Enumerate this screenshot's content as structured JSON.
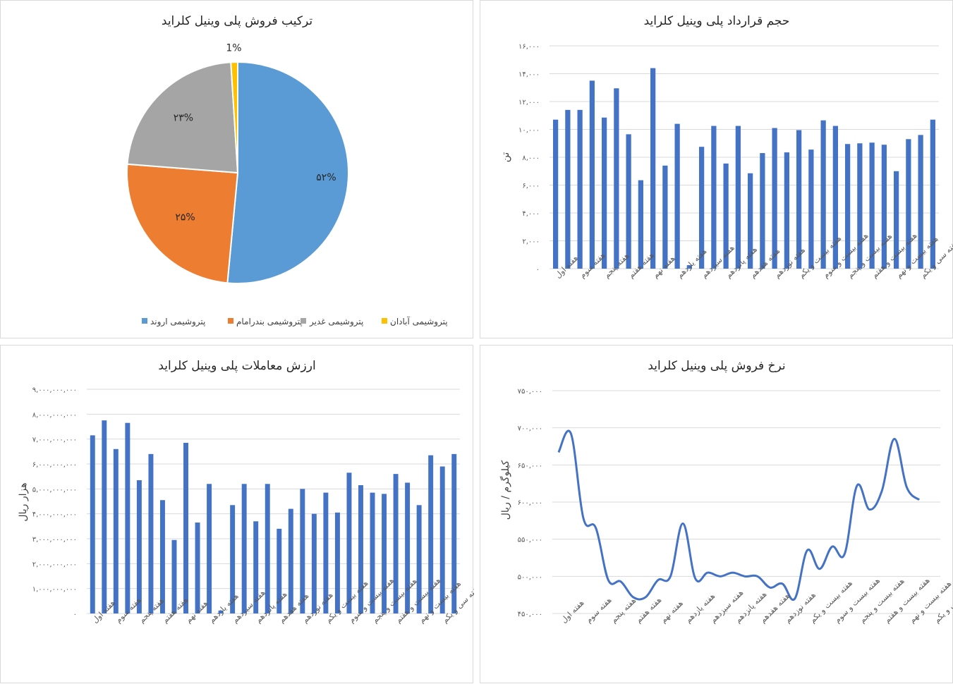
{
  "charts": {
    "pie": {
      "title": "ترکیب فروش پلی وینیل کلراید",
      "legend": [
        {
          "label": "پتروشیمی اروند",
          "color": "#5b9bd5"
        },
        {
          "label": "پتروشیمی بندرامام",
          "color": "#ed7d31"
        },
        {
          "label": "پتروشیمی غدیر",
          "color": "#a5a5a5"
        },
        {
          "label": "پتروشیمی آبادان",
          "color": "#ffc000"
        }
      ]
    },
    "volume": {
      "title": "حجم قرارداد پلی وینیل کلراید",
      "ylabel": "تن"
    },
    "value": {
      "title": "ارزش معاملات پلی وینیل کلراید",
      "ylabel": "هزار ریال"
    },
    "price": {
      "title": "نرخ فروش پلی وینیل کلراید",
      "ylabel": "کیلوگرم / ریال"
    }
  },
  "chart_data": [
    {
      "type": "pie",
      "title": "ترکیب فروش پلی وینیل کلراید",
      "categories": [
        "پتروشیمی اروند",
        "پتروشیمی بندرامام",
        "پتروشیمی غدیر",
        "پتروشیمی آبادان"
      ],
      "values": [
        52,
        25,
        23,
        1
      ],
      "value_labels": [
        "۵۲%",
        "۲۵%",
        "۲۳%",
        "1%"
      ],
      "colors": [
        "#5b9bd5",
        "#ed7d31",
        "#a5a5a5",
        "#ffc000"
      ],
      "legend": "bottom"
    },
    {
      "type": "bar",
      "title": "حجم قرارداد پلی وینیل کلراید",
      "ylabel": "تن",
      "ylim": [
        0,
        16000
      ],
      "yticks": [
        "۰",
        "۲,۰۰۰",
        "۴,۰۰۰",
        "۶,۰۰۰",
        "۸,۰۰۰",
        "۱۰,۰۰۰",
        "۱۲,۰۰۰",
        "۱۴,۰۰۰",
        "۱۶,۰۰۰"
      ],
      "x_tick_labels": [
        "هفته اول",
        "هفته سوم",
        "هفته پنجم",
        "هفته هفتم",
        "هفته نهم",
        "هفته یازدهم",
        "هفته سیزدهم",
        "هفته پانزدهم",
        "هفته هفدهم",
        "هفته نوزدهم",
        "هفته بیست و یکم",
        "هفته بیست و سوم",
        "هفته بیست و پنجم",
        "هفته بیست و هفتم",
        "هفته بیست و نهم",
        "هفته سی و یکم"
      ],
      "values": [
        10700,
        11400,
        11400,
        13500,
        10850,
        12950,
        9650,
        6350,
        14400,
        7400,
        10400,
        250,
        8750,
        10250,
        7550,
        10250,
        6850,
        8300,
        10100,
        8350,
        9950,
        8550,
        10650,
        10250,
        8950,
        9000,
        9050,
        8900,
        7000,
        9300,
        9600,
        10700
      ],
      "color": "#4472c4",
      "grid": true
    },
    {
      "type": "bar",
      "title": "ارزش معاملات پلی وینیل کلراید",
      "ylabel": "هزار ریال",
      "ylim": [
        0,
        9000000000
      ],
      "yticks": [
        "۰",
        "۱,۰۰۰,۰۰۰,۰۰۰",
        "۲,۰۰۰,۰۰۰,۰۰۰",
        "۳,۰۰۰,۰۰۰,۰۰۰",
        "۴,۰۰۰,۰۰۰,۰۰۰",
        "۵,۰۰۰,۰۰۰,۰۰۰",
        "۶,۰۰۰,۰۰۰,۰۰۰",
        "۷,۰۰۰,۰۰۰,۰۰۰",
        "۸,۰۰۰,۰۰۰,۰۰۰",
        "۹,۰۰۰,۰۰۰,۰۰۰"
      ],
      "x_tick_labels": [
        "هفته اول",
        "هفته سوم",
        "هفته پنجم",
        "هفته هفتم",
        "هفته نهم",
        "هفته یازدهم",
        "هفته سیزدهم",
        "هفته پانزدهم",
        "هفته هفدهم",
        "هفته نوزدهم",
        "هفته بیست و یکم",
        "هفته بیست و سوم",
        "هفته بیست و پنجم",
        "هفته بیست و هفتم",
        "هفته بیست و نهم",
        "هفته سی و یکم"
      ],
      "values": [
        7150000000,
        7750000000,
        6600000000,
        7650000000,
        5350000000,
        6400000000,
        4550000000,
        2950000000,
        6850000000,
        3650000000,
        5200000000,
        120000000,
        4350000000,
        5200000000,
        3700000000,
        5200000000,
        3400000000,
        4200000000,
        5000000000,
        4000000000,
        4850000000,
        4050000000,
        5650000000,
        5150000000,
        4850000000,
        4800000000,
        5600000000,
        5250000000,
        4350000000,
        6350000000,
        5900000000,
        6400000000
      ],
      "color": "#4472c4",
      "grid": true
    },
    {
      "type": "line",
      "title": "نرخ فروش پلی وینیل کلراید",
      "ylabel": "کیلوگرم / ریال",
      "ylim": [
        450000,
        750000
      ],
      "yticks": [
        "۴۵۰,۰۰۰",
        "۵۰۰,۰۰۰",
        "۵۵۰,۰۰۰",
        "۶۰۰,۰۰۰",
        "۶۵۰,۰۰۰",
        "۷۰۰,۰۰۰",
        "۷۵۰,۰۰۰"
      ],
      "x_tick_labels": [
        "هفته اول",
        "هفته سوم",
        "هفته پنجم",
        "هفته هفتم",
        "هفته نهم",
        "هفته یازدهم",
        "هفته سیزدهم",
        "هفته پانزدهم",
        "هفته هفدهم",
        "هفته نوزدهم",
        "هفته بیست و یکم",
        "هفته بیست و سوم",
        "هفته بیست و پنجم",
        "هفته بیست و هفتم",
        "هفته بیست و نهم",
        "هفته سی و یکم"
      ],
      "values": [
        667000,
        692000,
        578000,
        565000,
        495000,
        493000,
        472000,
        472000,
        495000,
        500000,
        571000,
        497000,
        505000,
        500000,
        505000,
        500000,
        500000,
        485000,
        490000,
        470000,
        535000,
        510000,
        540000,
        530000,
        622000,
        590000,
        615000,
        685000,
        620000,
        603000
      ],
      "color": "#4472c4",
      "smooth": true,
      "grid": true
    }
  ]
}
